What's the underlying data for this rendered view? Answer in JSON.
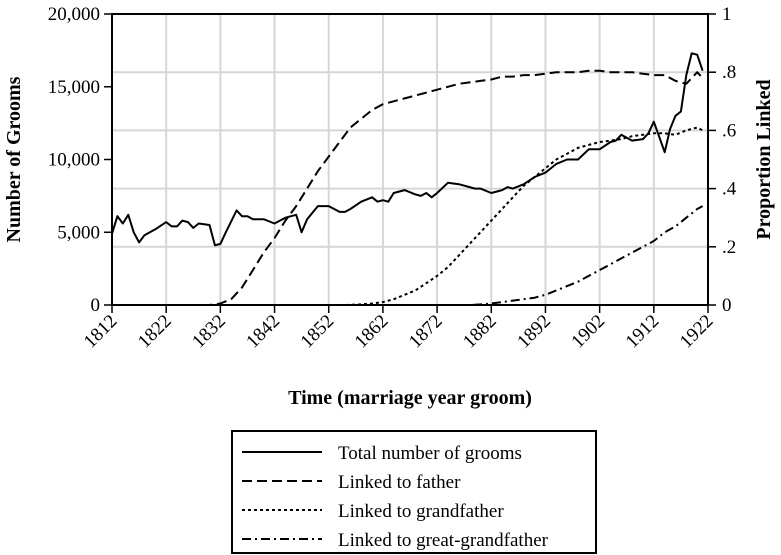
{
  "chart_data": {
    "type": "line",
    "title": "",
    "xlabel": "Time (marriage year groom)",
    "ylabel_left": "Number of Grooms",
    "ylabel_right": "Proportion Linked",
    "xlim": [
      1812,
      1922
    ],
    "ylim_left": [
      0,
      20000
    ],
    "ylim_right": [
      0,
      1
    ],
    "x_ticks": [
      1812,
      1822,
      1832,
      1842,
      1852,
      1862,
      1872,
      1882,
      1892,
      1902,
      1912,
      1922
    ],
    "x_tick_labels": [
      "1812",
      "1822",
      "1832",
      "1842",
      "1852",
      "1862",
      "1872",
      "1882",
      "1892",
      "1902",
      "1912",
      "1922"
    ],
    "y_left_ticks": [
      0,
      5000,
      10000,
      15000,
      20000
    ],
    "y_left_tick_labels": [
      "0",
      "5,000",
      "10,000",
      "15,000",
      "20,000"
    ],
    "y_right_ticks": [
      0,
      0.2,
      0.4,
      0.6,
      0.8,
      1
    ],
    "y_right_tick_labels": [
      "0",
      ".2",
      ".4",
      ".6",
      ".8",
      "1"
    ],
    "grid": true,
    "legend_position": "bottom",
    "series": [
      {
        "name": "Total number of grooms",
        "axis": "left",
        "style": "solid",
        "points": [
          [
            1812,
            4900
          ],
          [
            1813,
            6100
          ],
          [
            1814,
            5600
          ],
          [
            1815,
            6200
          ],
          [
            1816,
            5000
          ],
          [
            1817,
            4300
          ],
          [
            1818,
            4800
          ],
          [
            1820,
            5200
          ],
          [
            1822,
            5700
          ],
          [
            1823,
            5400
          ],
          [
            1824,
            5400
          ],
          [
            1825,
            5800
          ],
          [
            1826,
            5700
          ],
          [
            1827,
            5300
          ],
          [
            1828,
            5600
          ],
          [
            1830,
            5500
          ],
          [
            1831,
            4100
          ],
          [
            1832,
            4200
          ],
          [
            1833,
            5000
          ],
          [
            1835,
            6500
          ],
          [
            1836,
            6100
          ],
          [
            1837,
            6100
          ],
          [
            1838,
            5900
          ],
          [
            1840,
            5900
          ],
          [
            1842,
            5600
          ],
          [
            1844,
            6000
          ],
          [
            1846,
            6200
          ],
          [
            1847,
            5000
          ],
          [
            1848,
            5900
          ],
          [
            1850,
            6800
          ],
          [
            1852,
            6800
          ],
          [
            1854,
            6400
          ],
          [
            1855,
            6400
          ],
          [
            1856,
            6600
          ],
          [
            1858,
            7100
          ],
          [
            1860,
            7400
          ],
          [
            1861,
            7100
          ],
          [
            1862,
            7200
          ],
          [
            1863,
            7100
          ],
          [
            1864,
            7700
          ],
          [
            1866,
            7900
          ],
          [
            1868,
            7600
          ],
          [
            1869,
            7500
          ],
          [
            1870,
            7700
          ],
          [
            1871,
            7400
          ],
          [
            1872,
            7700
          ],
          [
            1874,
            8400
          ],
          [
            1876,
            8300
          ],
          [
            1878,
            8100
          ],
          [
            1879,
            8000
          ],
          [
            1880,
            8000
          ],
          [
            1882,
            7700
          ],
          [
            1884,
            7900
          ],
          [
            1885,
            8100
          ],
          [
            1886,
            8000
          ],
          [
            1888,
            8300
          ],
          [
            1890,
            8800
          ],
          [
            1892,
            9100
          ],
          [
            1894,
            9700
          ],
          [
            1896,
            10000
          ],
          [
            1898,
            10000
          ],
          [
            1900,
            10700
          ],
          [
            1902,
            10700
          ],
          [
            1904,
            11200
          ],
          [
            1905,
            11300
          ],
          [
            1906,
            11700
          ],
          [
            1908,
            11300
          ],
          [
            1910,
            11400
          ],
          [
            1911,
            11800
          ],
          [
            1912,
            12600
          ],
          [
            1914,
            10500
          ],
          [
            1915,
            12100
          ],
          [
            1916,
            13000
          ],
          [
            1917,
            13300
          ],
          [
            1918,
            15800
          ],
          [
            1919,
            17300
          ],
          [
            1920,
            17200
          ],
          [
            1921,
            16100
          ]
        ]
      },
      {
        "name": "Linked to father",
        "axis": "right",
        "style": "dashed",
        "points": [
          [
            1812,
            0
          ],
          [
            1830,
            0
          ],
          [
            1832,
            0.005
          ],
          [
            1834,
            0.02
          ],
          [
            1836,
            0.06
          ],
          [
            1838,
            0.12
          ],
          [
            1840,
            0.18
          ],
          [
            1842,
            0.23
          ],
          [
            1844,
            0.29
          ],
          [
            1846,
            0.34
          ],
          [
            1848,
            0.4
          ],
          [
            1850,
            0.46
          ],
          [
            1852,
            0.51
          ],
          [
            1854,
            0.56
          ],
          [
            1856,
            0.61
          ],
          [
            1858,
            0.64
          ],
          [
            1860,
            0.67
          ],
          [
            1862,
            0.69
          ],
          [
            1864,
            0.7
          ],
          [
            1866,
            0.71
          ],
          [
            1868,
            0.72
          ],
          [
            1870,
            0.73
          ],
          [
            1872,
            0.74
          ],
          [
            1874,
            0.75
          ],
          [
            1876,
            0.76
          ],
          [
            1878,
            0.765
          ],
          [
            1880,
            0.77
          ],
          [
            1882,
            0.775
          ],
          [
            1884,
            0.785
          ],
          [
            1886,
            0.785
          ],
          [
            1888,
            0.79
          ],
          [
            1890,
            0.79
          ],
          [
            1892,
            0.795
          ],
          [
            1894,
            0.8
          ],
          [
            1896,
            0.8
          ],
          [
            1898,
            0.8
          ],
          [
            1900,
            0.805
          ],
          [
            1902,
            0.805
          ],
          [
            1904,
            0.8
          ],
          [
            1906,
            0.8
          ],
          [
            1908,
            0.8
          ],
          [
            1910,
            0.795
          ],
          [
            1912,
            0.79
          ],
          [
            1914,
            0.79
          ],
          [
            1916,
            0.77
          ],
          [
            1918,
            0.76
          ],
          [
            1920,
            0.8
          ],
          [
            1921,
            0.78
          ]
        ]
      },
      {
        "name": "Linked to grandfather",
        "axis": "right",
        "style": "dotted",
        "points": [
          [
            1812,
            0
          ],
          [
            1855,
            0
          ],
          [
            1858,
            0.002
          ],
          [
            1860,
            0.005
          ],
          [
            1862,
            0.01
          ],
          [
            1864,
            0.02
          ],
          [
            1866,
            0.035
          ],
          [
            1868,
            0.05
          ],
          [
            1870,
            0.075
          ],
          [
            1872,
            0.1
          ],
          [
            1874,
            0.13
          ],
          [
            1876,
            0.17
          ],
          [
            1878,
            0.21
          ],
          [
            1880,
            0.25
          ],
          [
            1882,
            0.29
          ],
          [
            1884,
            0.33
          ],
          [
            1886,
            0.37
          ],
          [
            1888,
            0.41
          ],
          [
            1890,
            0.44
          ],
          [
            1892,
            0.47
          ],
          [
            1894,
            0.5
          ],
          [
            1896,
            0.52
          ],
          [
            1898,
            0.54
          ],
          [
            1900,
            0.55
          ],
          [
            1902,
            0.56
          ],
          [
            1904,
            0.565
          ],
          [
            1906,
            0.57
          ],
          [
            1908,
            0.58
          ],
          [
            1910,
            0.585
          ],
          [
            1912,
            0.59
          ],
          [
            1914,
            0.59
          ],
          [
            1916,
            0.585
          ],
          [
            1918,
            0.6
          ],
          [
            1920,
            0.61
          ],
          [
            1921,
            0.6
          ]
        ]
      },
      {
        "name": "Linked to great-grandfather",
        "axis": "right",
        "style": "dash-dot",
        "points": [
          [
            1812,
            0
          ],
          [
            1878,
            0
          ],
          [
            1880,
            0.002
          ],
          [
            1882,
            0.005
          ],
          [
            1884,
            0.01
          ],
          [
            1886,
            0.015
          ],
          [
            1888,
            0.02
          ],
          [
            1890,
            0.025
          ],
          [
            1892,
            0.035
          ],
          [
            1894,
            0.05
          ],
          [
            1896,
            0.065
          ],
          [
            1898,
            0.08
          ],
          [
            1900,
            0.1
          ],
          [
            1902,
            0.12
          ],
          [
            1904,
            0.14
          ],
          [
            1906,
            0.16
          ],
          [
            1908,
            0.18
          ],
          [
            1910,
            0.2
          ],
          [
            1912,
            0.22
          ],
          [
            1914,
            0.25
          ],
          [
            1916,
            0.27
          ],
          [
            1918,
            0.3
          ],
          [
            1920,
            0.33
          ],
          [
            1921,
            0.34
          ]
        ]
      }
    ]
  }
}
